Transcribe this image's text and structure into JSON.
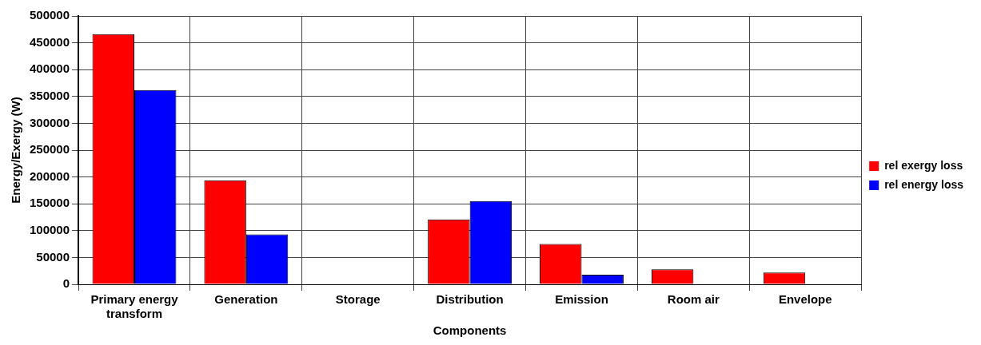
{
  "chart_data": {
    "type": "bar",
    "xlabel": "Components",
    "ylabel": "Energy/Exergy (W)",
    "categories": [
      "Primary energy transform",
      "Generation",
      "Storage",
      "Distribution",
      "Emission",
      "Room air",
      "Envelope"
    ],
    "series": [
      {
        "name": "rel exergy loss",
        "color": "#ff0000",
        "values": [
          466000,
          194000,
          0,
          121000,
          75000,
          28000,
          22000
        ]
      },
      {
        "name": "rel energy loss",
        "color": "#0000ff",
        "values": [
          362000,
          93000,
          0,
          155000,
          18000,
          0,
          0
        ]
      }
    ],
    "ylim": [
      0,
      500000
    ],
    "yticks": [
      0,
      50000,
      100000,
      150000,
      200000,
      250000,
      300000,
      350000,
      400000,
      450000,
      500000
    ],
    "grid": true,
    "legend": "right"
  }
}
